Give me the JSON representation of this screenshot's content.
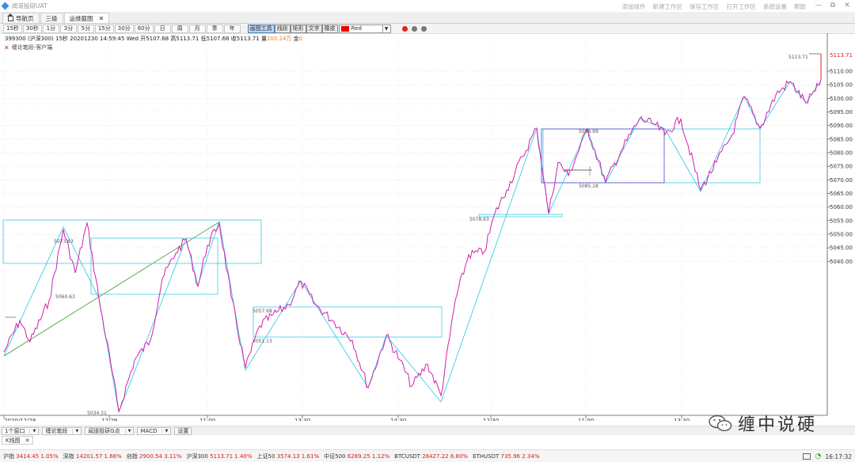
{
  "app": {
    "title": "闻道投研UAT"
  },
  "topmenu": [
    "添加组件",
    "新建工作区",
    "保存工作区",
    "打开工作区",
    "系统设置",
    "帮助"
  ],
  "window_controls": {
    "minimize": "—",
    "restore": "⧉",
    "close": "✕"
  },
  "tabs": [
    {
      "label": "导航页",
      "icon": "home-icon",
      "closable": false,
      "active": false
    },
    {
      "label": "三级",
      "closable": false,
      "active": false
    },
    {
      "label": "运维截图",
      "closable": true,
      "active": true,
      "close": "✕"
    }
  ],
  "periods": [
    "15秒",
    "30秒",
    "1分",
    "3分",
    "5分",
    "15分",
    "30分",
    "60分",
    "日",
    "周",
    "月",
    "季",
    "年"
  ],
  "tools": [
    {
      "label": "画图工具",
      "active": true
    },
    {
      "label": "线段",
      "active": false
    },
    {
      "label": "矩形",
      "active": false
    },
    {
      "label": "文字",
      "active": false
    },
    {
      "label": "橡皮",
      "active": false
    }
  ],
  "color_select": {
    "value": "Red",
    "swatch": "#e00000"
  },
  "color_dots": [
    "#e02020",
    "#777777",
    "#777777"
  ],
  "info": {
    "symbol": "399300 (沪深300)",
    "period": "15秒",
    "datetime": "20201230 14:59:45 Wed",
    "open_label": "开",
    "open": "5107.68",
    "high_label": "高",
    "high": "5113.71",
    "low_label": "低",
    "low": "5107.68",
    "close_label": "收",
    "close": "5113.71",
    "vol_label": "量",
    "vol": "200.24万",
    "amount_label": "金",
    "amount": "0"
  },
  "indicator": {
    "label": "缠论笔段-客户端",
    "close": "✕"
  },
  "chart": {
    "y_ticks": [
      "5110.00",
      "5105.00",
      "5100.00",
      "5095.00",
      "5090.00",
      "5085.00",
      "5080.00",
      "5075.00",
      "5070.00",
      "5065.00",
      "5060.00",
      "5055.00",
      "5050.00",
      "5045.00",
      "5040.00"
    ],
    "x_ticks": [
      "2020/12/28",
      "12/29",
      "11:00",
      "13:30",
      "14:30",
      "12/30",
      "11:00",
      "13:30"
    ],
    "last_price_label": "5113.71",
    "annotations": [
      "5113.71",
      "5096.99",
      "5085.18",
      "5078.63",
      "5073.63",
      "5060.63",
      "5034.31",
      "5057.68",
      "5051.13"
    ],
    "colors": {
      "price": "#e01fb5",
      "stroke": "#3ccce6",
      "box": "#5b5fd0",
      "trend": "#3a9a2e",
      "axis": "#555555",
      "last": "#e02020"
    }
  },
  "bottom": {
    "selects": [
      "1个窗口",
      "缠论笔段",
      "闻道投研G点",
      "MACD"
    ],
    "settings": "设置",
    "ktab": {
      "label": "K线图",
      "close": "✕"
    }
  },
  "status": {
    "quotes": [
      {
        "name": "沪指",
        "value": "3414.45",
        "pct": "1.05%"
      },
      {
        "name": "深指",
        "value": "14201.57",
        "pct": "1.66%"
      },
      {
        "name": "创指",
        "value": "2900.54",
        "pct": "3.11%"
      },
      {
        "name": "沪深300",
        "value": "5113.71",
        "pct": "1.40%"
      },
      {
        "name": "上证50",
        "value": "3574.13",
        "pct": "1.61%"
      },
      {
        "name": "中证500",
        "value": "6269.25",
        "pct": "1.12%"
      },
      {
        "name": "BTCUSDT",
        "value": "28427.22",
        "pct": "6.80%"
      },
      {
        "name": "ETHUSDT",
        "value": "735.96",
        "pct": "2.34%"
      }
    ],
    "time": "16:17:32"
  },
  "watermark": {
    "text": "缠中说硬"
  }
}
